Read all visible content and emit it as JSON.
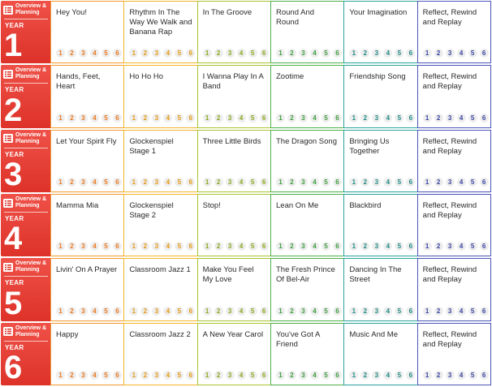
{
  "overview_label": "Overview &\nPlanning",
  "year_word": "YEAR",
  "column_colors": [
    "#f39a2e",
    "#f2b529",
    "#a7c431",
    "#4db04a",
    "#2aa39b",
    "#4b56b8"
  ],
  "number_colors": [
    "#e8771f",
    "#e39a15",
    "#8aa820",
    "#3d9b3c",
    "#1f8a83",
    "#3b45a0"
  ],
  "steps": [
    "1",
    "2",
    "3",
    "4",
    "5",
    "6"
  ],
  "years": [
    {
      "num": "1",
      "units": [
        "Hey You!",
        "Rhythm In The Way We Walk and Banana Rap",
        "In The Groove",
        "Round And Round",
        "Your Imagination",
        "Reflect, Rewind and Replay"
      ]
    },
    {
      "num": "2",
      "units": [
        "Hands, Feet, Heart",
        "Ho Ho Ho",
        "I Wanna Play In A Band",
        "Zootime",
        "Friendship Song",
        "Reflect, Rewind and Replay"
      ]
    },
    {
      "num": "3",
      "units": [
        "Let Your Spirit Fly",
        "Glockenspiel Stage 1",
        "Three Little Birds",
        "The Dragon Song",
        "Bringing Us Together",
        "Reflect, Rewind and Replay"
      ]
    },
    {
      "num": "4",
      "units": [
        "Mamma Mia",
        "Glockenspiel Stage 2",
        "Stop!",
        "Lean On Me",
        "Blackbird",
        "Reflect, Rewind and Replay"
      ]
    },
    {
      "num": "5",
      "units": [
        "Livin' On A Prayer",
        "Classroom Jazz 1",
        "Make You Feel My Love",
        "The Fresh Prince Of Bel-Air",
        "Dancing In The Street",
        "Reflect, Rewind and Replay"
      ]
    },
    {
      "num": "6",
      "units": [
        "Happy",
        "Classroom Jazz 2",
        "A New Year Carol",
        "You've Got A Friend",
        "Music And Me",
        "Reflect, Rewind and Replay"
      ]
    }
  ]
}
